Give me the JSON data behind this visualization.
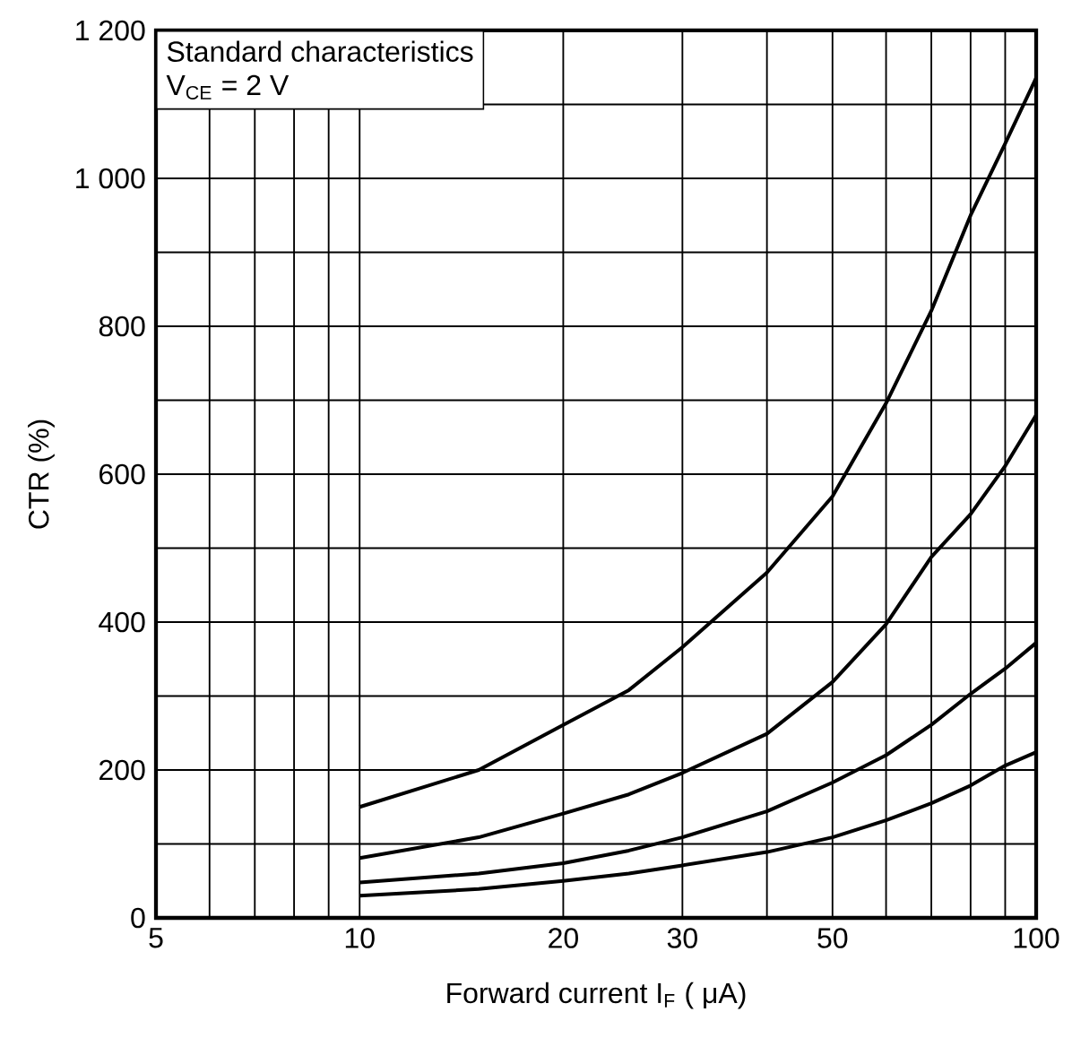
{
  "chart_data": {
    "type": "line",
    "xlabel": "Forward current I$_{F}$ ( μA)",
    "ylabel": "CTR (%)",
    "annotations": [
      "Standard characteristics",
      "V$_{CE}$ = 2 V"
    ],
    "x": [
      10,
      15,
      20,
      25,
      30,
      40,
      50,
      60,
      70,
      80,
      90,
      100
    ],
    "series": [
      {
        "color": "#000000",
        "values": [
          150,
          200,
          261,
          308,
          366,
          467,
          570,
          696,
          821,
          950,
          1047,
          1136
        ]
      },
      {
        "color": "#000000",
        "values": [
          81,
          109,
          141,
          167,
          196,
          249,
          319,
          397,
          488,
          546,
          611,
          680
        ]
      },
      {
        "color": "#000000",
        "values": [
          48,
          60,
          74,
          91,
          109,
          144,
          183,
          220,
          261,
          303,
          337,
          372
        ]
      },
      {
        "color": "#000000",
        "values": [
          30,
          39,
          50,
          60,
          71,
          89,
          109,
          132,
          155,
          179,
          206,
          224
        ]
      }
    ],
    "log": "x",
    "xlim": [
      5,
      100
    ],
    "ylim": [
      0,
      1200
    ],
    "xticks": [
      5,
      {
        "value": 6,
        "label": null
      },
      {
        "value": 7,
        "label": null
      },
      {
        "value": 8,
        "label": null
      },
      {
        "value": 9,
        "label": null
      },
      10,
      20,
      30,
      {
        "value": 40,
        "label": null
      },
      50,
      {
        "value": 60,
        "label": null
      },
      {
        "value": 70,
        "label": null
      },
      {
        "value": 80,
        "label": null
      },
      {
        "value": 90,
        "label": null
      },
      100
    ],
    "yticks": [
      0,
      {
        "value": 100,
        "label": null
      },
      200,
      {
        "value": 300,
        "label": null
      },
      400,
      {
        "value": 500,
        "label": null
      },
      600,
      {
        "value": 700,
        "label": null
      },
      800,
      {
        "value": 900,
        "label": null
      },
      {
        "value": 1000,
        "label": "1 000"
      },
      {
        "value": 1100,
        "label": null
      },
      {
        "value": 1200,
        "label": "1 200"
      }
    ],
    "grid": true,
    "marker": "none",
    "line_style": "solid"
  }
}
